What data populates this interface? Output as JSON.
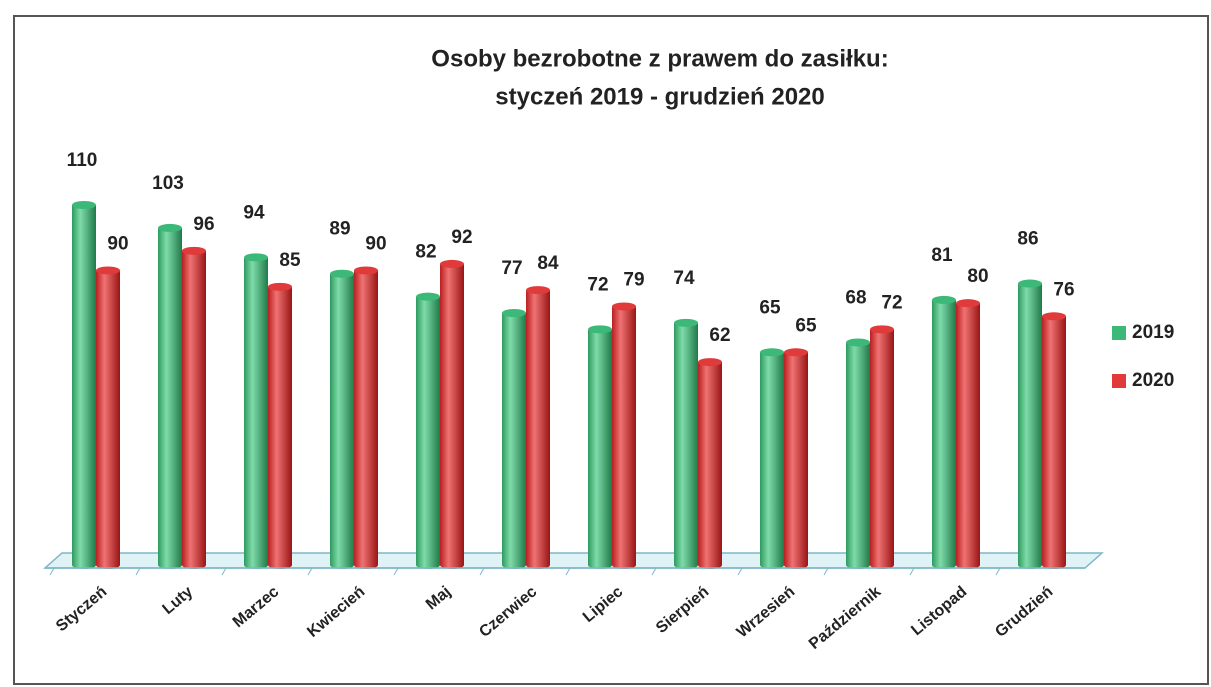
{
  "chart_data": {
    "type": "bar",
    "title": [
      "Osoby bezrobotne z prawem do zasiłku:",
      "styczeń 2019 - grudzień 2020"
    ],
    "categories": [
      "Styczeń",
      "Luty",
      "Marzec",
      "Kwiecień",
      "Maj",
      "Czerwiec",
      "Lipiec",
      "Sierpień",
      "Wrzesień",
      "Październik",
      "Listopad",
      "Grudzień"
    ],
    "series": [
      {
        "name": "2019",
        "color": "#3cb878",
        "values": [
          110,
          103,
          94,
          89,
          82,
          77,
          72,
          74,
          65,
          68,
          81,
          86
        ]
      },
      {
        "name": "2020",
        "color": "#e03a3a",
        "values": [
          90,
          96,
          85,
          90,
          92,
          84,
          79,
          62,
          65,
          72,
          80,
          76
        ]
      }
    ],
    "legend": "right"
  }
}
